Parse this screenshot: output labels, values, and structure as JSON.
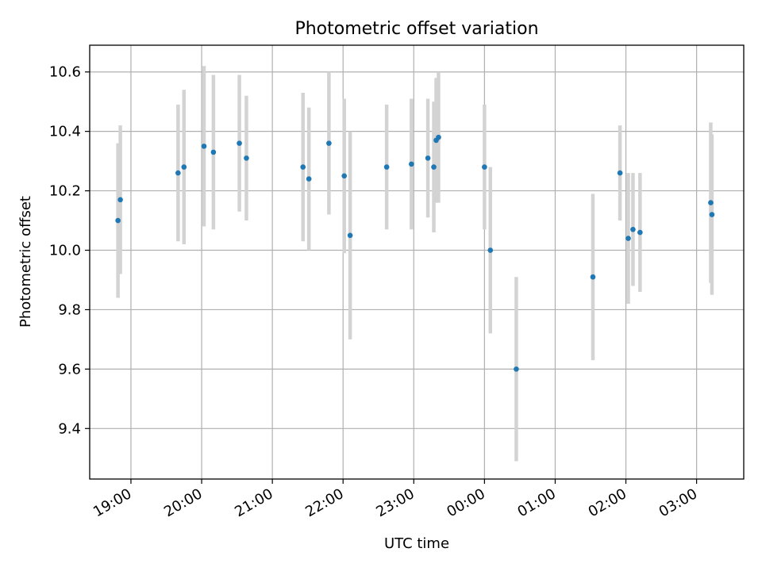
{
  "chart_data": {
    "type": "scatter",
    "title": "Photometric offset variation",
    "xlabel": "UTC time",
    "ylabel": "Photometric offset",
    "x_axis_type": "time",
    "x_tick_labels": [
      "19:00",
      "20:00",
      "21:00",
      "22:00",
      "23:00",
      "00:00",
      "01:00",
      "02:00",
      "03:00"
    ],
    "y_ticks": [
      9.4,
      9.6,
      9.8,
      10.0,
      10.2,
      10.4,
      10.6
    ],
    "y_tick_labels": [
      "9.4",
      "9.6",
      "9.8",
      "10.0",
      "10.2",
      "10.4",
      "10.6"
    ],
    "xlim": [
      "18:25",
      "03:40"
    ],
    "ylim": [
      9.23,
      10.69
    ],
    "grid": true,
    "point_color": "#1f77b4",
    "errorbar_color": "#d3d3d3",
    "series": [
      {
        "x": [
          "18:49",
          "18:51",
          "19:40",
          "19:45",
          "20:02",
          "20:10",
          "20:32",
          "20:38",
          "21:26",
          "21:31",
          "21:48",
          "22:01",
          "22:06",
          "22:37",
          "22:58",
          "23:12",
          "23:17",
          "23:19",
          "23:21",
          "00:00",
          "00:05",
          "00:27",
          "01:32",
          "01:55",
          "02:02",
          "02:06",
          "02:12",
          "03:12",
          "03:13"
        ],
        "y": [
          10.1,
          10.17,
          10.26,
          10.28,
          10.35,
          10.33,
          10.36,
          10.31,
          10.28,
          10.24,
          10.36,
          10.25,
          10.05,
          10.28,
          10.29,
          10.31,
          10.28,
          10.37,
          10.38,
          10.28,
          10.0,
          9.6,
          9.91,
          10.26,
          10.04,
          10.07,
          10.06,
          10.16,
          10.12
        ],
        "yerr": [
          0.26,
          0.25,
          0.23,
          0.26,
          0.27,
          0.26,
          0.23,
          0.21,
          0.25,
          0.24,
          0.24,
          0.26,
          0.35,
          0.21,
          0.22,
          0.2,
          0.22,
          0.21,
          0.22,
          0.21,
          0.28,
          0.31,
          0.28,
          0.16,
          0.22,
          0.19,
          0.2,
          0.27,
          0.27
        ]
      }
    ]
  }
}
